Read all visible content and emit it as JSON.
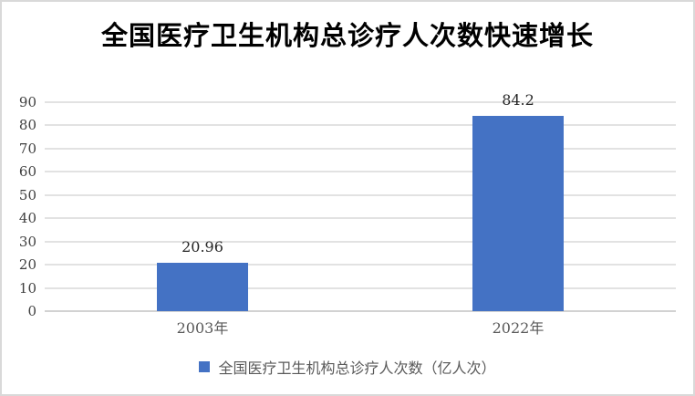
{
  "colors": {
    "bar": "#4472C4",
    "gridline": "#E2E2E2",
    "axis_line": "#D2D2D2",
    "title_text": "#000000",
    "tick_text": "#3F3F3F",
    "data_label_text": "#262626",
    "category_text": "#595959",
    "legend_text": "#595959",
    "frame_border": "#D9D9D9",
    "background": "#FFFFFF"
  },
  "chart_data": {
    "type": "bar",
    "title": "全国医疗卫生机构总诊疗人次数快速增长",
    "categories": [
      "2003年",
      "2022年"
    ],
    "values": [
      20.96,
      84.2
    ],
    "data_labels": [
      "20.96",
      "84.2"
    ],
    "xlabel": "",
    "ylabel": "",
    "ylim": [
      0,
      90
    ],
    "yticks": [
      0,
      10,
      20,
      30,
      40,
      50,
      60,
      70,
      80,
      90
    ],
    "grid": true,
    "legend": {
      "position": "bottom",
      "entries": [
        "全国医疗卫生机构总诊疗人次数（亿人次）"
      ]
    }
  }
}
